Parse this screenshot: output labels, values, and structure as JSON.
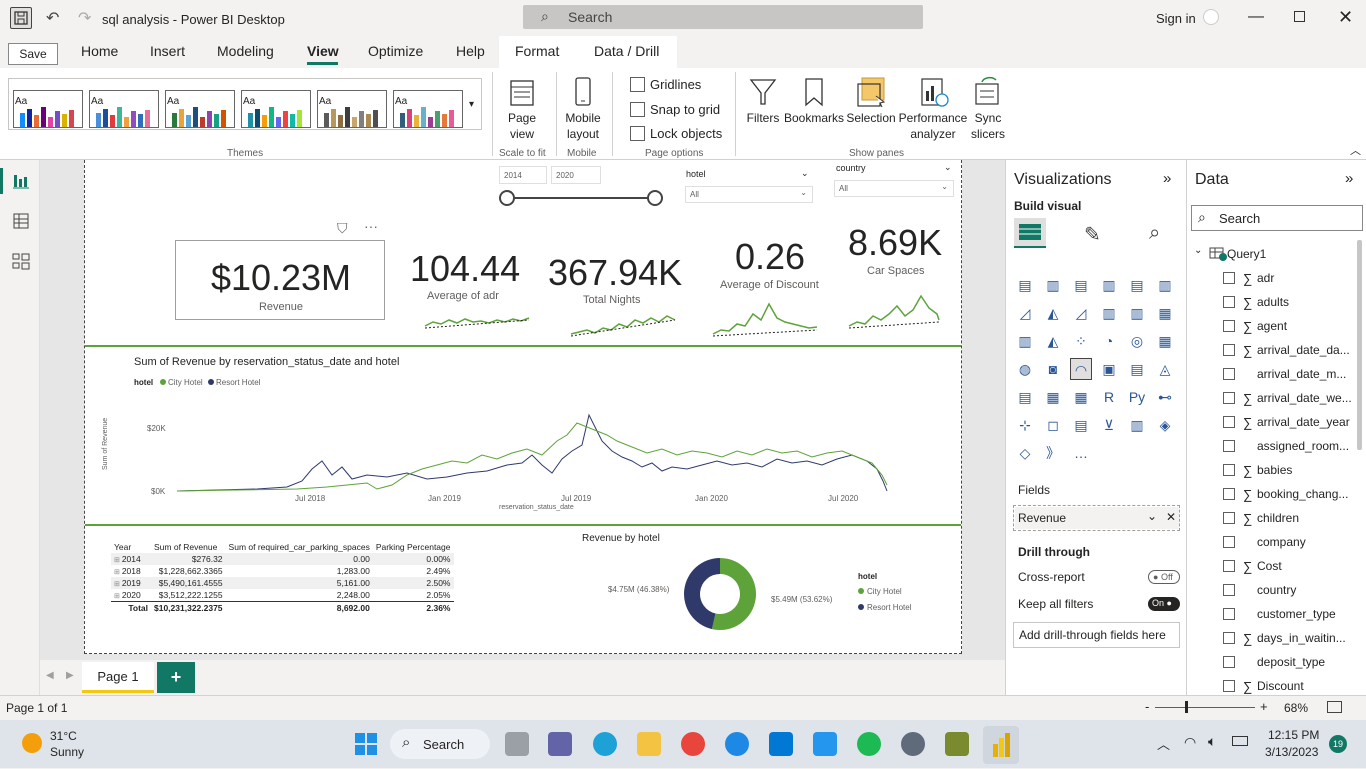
{
  "window": {
    "title": "sql analysis - Power BI Desktop",
    "search_placeholder": "Search",
    "sign_in": "Sign in",
    "save_tooltip": "Save"
  },
  "menu": [
    "Home",
    "Insert",
    "Modeling",
    "View",
    "Optimize",
    "Help",
    "Format",
    "Data / Drill"
  ],
  "ribbon": {
    "themes_label": "Themes",
    "theme_sample": "Aa",
    "page_view": "Page view",
    "scale_to_fit": "Scale to fit",
    "mobile_layout": "Mobile layout",
    "mobile": "Mobile",
    "gridlines": "Gridlines",
    "snap_to_grid": "Snap to grid",
    "lock_objects": "Lock objects",
    "page_options": "Page options",
    "filters": "Filters",
    "bookmarks": "Bookmarks",
    "selection": "Selection",
    "performance": "Performance analyzer",
    "sync": "Sync slicers",
    "show_panes": "Show panes"
  },
  "slicers": {
    "year_from": "2014",
    "year_to": "2020",
    "hotel_label": "hotel",
    "hotel_value": "All",
    "country_label": "country",
    "country_value": "All"
  },
  "kpis": [
    {
      "value": "$10.23M",
      "label": "Revenue"
    },
    {
      "value": "104.44",
      "label": "Average of adr"
    },
    {
      "value": "367.94K",
      "label": "Total Nights"
    },
    {
      "value": "0.26",
      "label": "Average of Discount"
    },
    {
      "value": "8.69K",
      "label": "Car Spaces"
    }
  ],
  "line_chart": {
    "title": "Sum of Revenue by reservation_status_date and hotel",
    "legend_title": "hotel",
    "legend": [
      "City Hotel",
      "Resort Hotel"
    ],
    "ylabel": "Sum of Revenue",
    "xlabel": "reservation_status_date",
    "yticks": [
      "$20K",
      "$0K"
    ],
    "xticks": [
      "Jul 2018",
      "Jan 2019",
      "Jul 2019",
      "Jan 2020",
      "Jul 2020"
    ]
  },
  "table": {
    "headers": [
      "Year",
      "Sum of Revenue",
      "Sum of required_car_parking_spaces",
      "Parking Percentage"
    ],
    "rows": [
      [
        "2014",
        "$276.32",
        "0.00",
        "0.00%"
      ],
      [
        "2018",
        "$1,228,662.3365",
        "1,283.00",
        "2.49%"
      ],
      [
        "2019",
        "$5,490,161.4555",
        "5,161.00",
        "2.50%"
      ],
      [
        "2020",
        "$3,512,222.1255",
        "2,248.00",
        "2.05%"
      ]
    ],
    "total": [
      "Total",
      "$10,231,322.2375",
      "8,692.00",
      "2.36%"
    ]
  },
  "donut": {
    "title": "Revenue by hotel",
    "legend_title": "hotel",
    "legend": [
      "City Hotel",
      "Resort Hotel"
    ],
    "left_label": "$4.75M (46.38%)",
    "right_label": "$5.49M (53.62%)"
  },
  "chart_data": {
    "type": "pie",
    "title": "Revenue by hotel",
    "categories": [
      "City Hotel",
      "Resort Hotel"
    ],
    "values": [
      53.62,
      46.38
    ]
  },
  "viz_pane": {
    "title": "Visualizations",
    "build_visual": "Build visual",
    "fields": "Fields",
    "field_value": "Revenue",
    "drill_through": "Drill through",
    "cross_report": "Cross-report",
    "cross_report_state": "Off",
    "keep_filters": "Keep all filters",
    "keep_filters_state": "On",
    "add_drill": "Add drill-through fields here"
  },
  "data_pane": {
    "title": "Data",
    "search_placeholder": "Search",
    "table_name": "Query1",
    "fields": [
      {
        "name": "adr",
        "sigma": true
      },
      {
        "name": "adults",
        "sigma": true
      },
      {
        "name": "agent",
        "sigma": true
      },
      {
        "name": "arrival_date_da...",
        "sigma": true
      },
      {
        "name": "arrival_date_m...",
        "sigma": false
      },
      {
        "name": "arrival_date_we...",
        "sigma": true
      },
      {
        "name": "arrival_date_year",
        "sigma": true
      },
      {
        "name": "assigned_room...",
        "sigma": false
      },
      {
        "name": "babies",
        "sigma": true
      },
      {
        "name": "booking_chang...",
        "sigma": true
      },
      {
        "name": "children",
        "sigma": true
      },
      {
        "name": "company",
        "sigma": false
      },
      {
        "name": "Cost",
        "sigma": true
      },
      {
        "name": "country",
        "sigma": false
      },
      {
        "name": "customer_type",
        "sigma": false
      },
      {
        "name": "days_in_waitin...",
        "sigma": true
      },
      {
        "name": "deposit_type",
        "sigma": false
      },
      {
        "name": "Discount",
        "sigma": true
      }
    ]
  },
  "tabs": {
    "page": "Page 1",
    "add": "+"
  },
  "status": {
    "page": "Page 1 of 1",
    "zoom": "68%",
    "minus": "-",
    "plus": "+"
  },
  "taskbar": {
    "temp": "31°C",
    "weather": "Sunny",
    "search": "Search",
    "time": "12:15 PM",
    "date": "3/13/2023",
    "badge": "19"
  },
  "colors": {
    "city": "#5ea33a",
    "resort": "#2f3a6b",
    "accent": "#f2c811"
  }
}
